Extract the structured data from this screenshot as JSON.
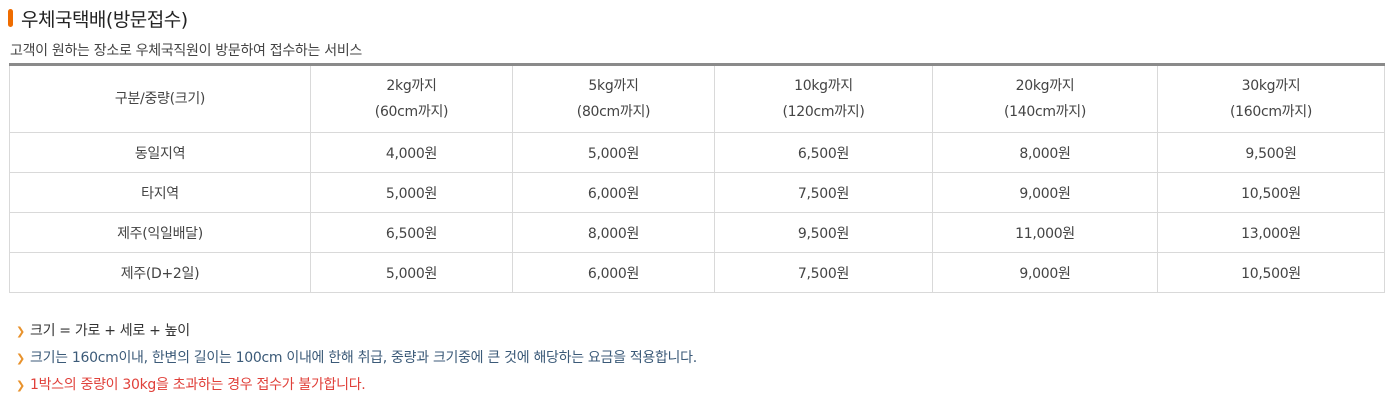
{
  "section": {
    "title": "우체국택배(방문접수)",
    "description": "고객이 원하는 장소로 우체국직원이 방문하여 접수하는 서비스"
  },
  "table": {
    "corner": "구분/중량(크기)",
    "columns": [
      {
        "weight": "2kg까지",
        "size": "(60cm까지)"
      },
      {
        "weight": "5kg까지",
        "size": "(80cm까지)"
      },
      {
        "weight": "10kg까지",
        "size": "(120cm까지)"
      },
      {
        "weight": "20kg까지",
        "size": "(140cm까지)"
      },
      {
        "weight": "30kg까지",
        "size": "(160cm까지)"
      }
    ],
    "rows": [
      {
        "label": "동일지역",
        "prices": [
          "4,000원",
          "5,000원",
          "6,500원",
          "8,000원",
          "9,500원"
        ]
      },
      {
        "label": "타지역",
        "prices": [
          "5,000원",
          "6,000원",
          "7,500원",
          "9,000원",
          "10,500원"
        ]
      },
      {
        "label": "제주(익일배달)",
        "prices": [
          "6,500원",
          "8,000원",
          "9,500원",
          "11,000원",
          "13,000원"
        ]
      },
      {
        "label": "제주(D+2일)",
        "prices": [
          "5,000원",
          "6,000원",
          "7,500원",
          "9,000원",
          "10,500원"
        ]
      }
    ]
  },
  "notes": [
    {
      "text": "크기 = 가로 + 세로 + 높이",
      "color": "#333333"
    },
    {
      "text": "크기는 160cm이내, 한변의 길이는 100cm 이내에 한해 취급, 중량과 크기중에 큰 것에 해당하는 요금을 적용합니다.",
      "color": "#3b5a78"
    },
    {
      "text": "1박스의 중량이 30kg을 초과하는 경우 접수가 불가합니다.",
      "color": "#e0403a"
    }
  ],
  "colors": {
    "accent": "#ef6c00",
    "bullet": "#e8922c",
    "table_top_border": "#8a8a8a",
    "cell_border": "#d9d9d9"
  },
  "icons": {
    "title_marker": "orange-bar-icon",
    "note_bullet": "chevron-right-icon"
  }
}
